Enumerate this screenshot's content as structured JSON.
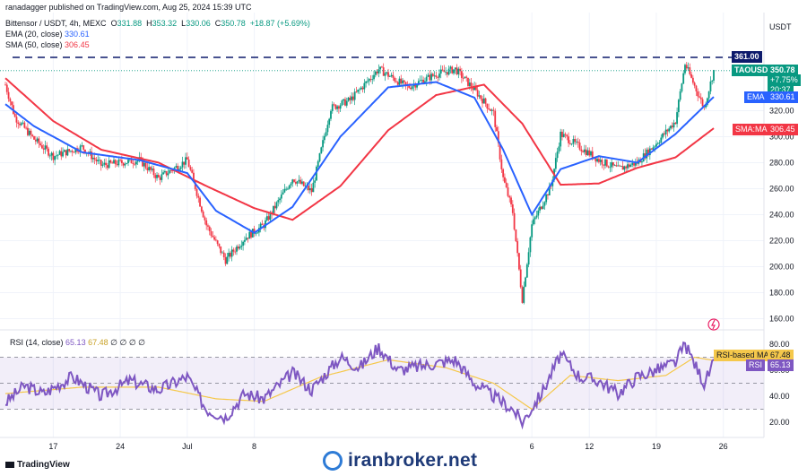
{
  "header": {
    "published_by": "ranadagger published on TradingView.com, Aug 25, 2024 15:39 UTC"
  },
  "symbol_line": {
    "name": "Bittensor / USDT, 4h, MEXC",
    "o_label": "O",
    "o": "331.88",
    "h_label": "H",
    "h": "353.32",
    "l_label": "L",
    "l": "330.06",
    "c_label": "C",
    "c": "350.78",
    "change": "+18.87 (+5.69%)"
  },
  "indicators": {
    "ema": {
      "label": "EMA (20, close)",
      "value": "330.61"
    },
    "sma": {
      "label": "SMA (50, close)",
      "value": "306.45"
    },
    "rsi": {
      "label": "RSI (14, close)",
      "value": "65.13",
      "ma_value": "67.48",
      "extras": "∅ ∅ ∅ ∅"
    }
  },
  "price_axis": {
    "currency": "USDT",
    "ticks": [
      "160.00",
      "180.00",
      "200.00",
      "220.00",
      "240.00",
      "260.00",
      "280.00",
      "300.00",
      "320.00"
    ]
  },
  "rsi_axis": {
    "ticks": [
      "20.00",
      "40.00",
      "60.00",
      "80.00"
    ]
  },
  "time_axis": {
    "ticks": [
      "17",
      "24",
      "Jul",
      "8",
      "6",
      "12",
      "19",
      "26"
    ]
  },
  "labels": {
    "resistance": "361.00",
    "ticker": "TAOUSDT",
    "last_price": "350.78",
    "last_change": "+7.75%",
    "countdown": "20:37",
    "ema_tag": "EMA",
    "ema_value": "330.61",
    "sma_tag": "SMA:MA",
    "sma_value": "306.45",
    "rsi_ma_tag": "RSI-based MA",
    "rsi_ma_value": "67.48",
    "rsi_tag": "RSI",
    "rsi_value": "65.13"
  },
  "footer": {
    "logo": "TradingView",
    "watermark": "iranbroker.net"
  },
  "colors": {
    "up": "#089981",
    "down": "#f23645",
    "ema": "#2962ff",
    "sma": "#f23645",
    "rsi": "#7e57c2",
    "rsi_ma": "#f5c84b",
    "resistance": "#0d1a6b"
  },
  "chart_data": {
    "type": "candlestick",
    "title": "Bittensor / USDT, 4h, MEXC",
    "ylim": [
      155,
      370
    ],
    "resistance_level": 361.0,
    "price_anchors": [
      {
        "time": "Jun 12",
        "value": 340
      },
      {
        "time": "Jun 13",
        "value": 315
      },
      {
        "time": "Jun 15",
        "value": 298
      },
      {
        "time": "Jun 17",
        "value": 285
      },
      {
        "time": "Jun 20",
        "value": 292
      },
      {
        "time": "Jun 22",
        "value": 278
      },
      {
        "time": "Jun 26",
        "value": 282
      },
      {
        "time": "Jun 28",
        "value": 268
      },
      {
        "time": "Jul 1",
        "value": 282
      },
      {
        "time": "Jul 3",
        "value": 232
      },
      {
        "time": "Jul 5",
        "value": 205
      },
      {
        "time": "Jul 7",
        "value": 222
      },
      {
        "time": "Jul 9",
        "value": 232
      },
      {
        "time": "Jul 12",
        "value": 268
      },
      {
        "time": "Jul 14",
        "value": 258
      },
      {
        "time": "Jul 16",
        "value": 322
      },
      {
        "time": "Jul 18",
        "value": 328
      },
      {
        "time": "Jul 21",
        "value": 352
      },
      {
        "time": "Jul 24",
        "value": 338
      },
      {
        "time": "Jul 27",
        "value": 348
      },
      {
        "time": "Jul 29",
        "value": 352
      },
      {
        "time": "Jul 31",
        "value": 336
      },
      {
        "time": "Aug 2",
        "value": 318
      },
      {
        "time": "Aug 3",
        "value": 268
      },
      {
        "time": "Aug 4",
        "value": 242
      },
      {
        "time": "Aug 5",
        "value": 175
      },
      {
        "time": "Aug 6",
        "value": 232
      },
      {
        "time": "Aug 8",
        "value": 262
      },
      {
        "time": "Aug 9",
        "value": 302
      },
      {
        "time": "Aug 11",
        "value": 292
      },
      {
        "time": "Aug 13",
        "value": 282
      },
      {
        "time": "Aug 15",
        "value": 275
      },
      {
        "time": "Aug 17",
        "value": 280
      },
      {
        "time": "Aug 19",
        "value": 295
      },
      {
        "time": "Aug 21",
        "value": 312
      },
      {
        "time": "Aug 22",
        "value": 356
      },
      {
        "time": "Aug 24",
        "value": 322
      },
      {
        "time": "Aug 25",
        "value": 350.78
      }
    ],
    "ema_anchors": [
      {
        "time": "Jun 12",
        "value": 325
      },
      {
        "time": "Jun 15",
        "value": 308
      },
      {
        "time": "Jun 20",
        "value": 288
      },
      {
        "time": "Jun 26",
        "value": 282
      },
      {
        "time": "Jul 1",
        "value": 272
      },
      {
        "time": "Jul 4",
        "value": 243
      },
      {
        "time": "Jul 8",
        "value": 226
      },
      {
        "time": "Jul 12",
        "value": 246
      },
      {
        "time": "Jul 17",
        "value": 300
      },
      {
        "time": "Jul 22",
        "value": 338
      },
      {
        "time": "Jul 27",
        "value": 342
      },
      {
        "time": "Jul 31",
        "value": 330
      },
      {
        "time": "Aug 3",
        "value": 290
      },
      {
        "time": "Aug 6",
        "value": 240
      },
      {
        "time": "Aug 9",
        "value": 275
      },
      {
        "time": "Aug 13",
        "value": 285
      },
      {
        "time": "Aug 17",
        "value": 280
      },
      {
        "time": "Aug 21",
        "value": 302
      },
      {
        "time": "Aug 25",
        "value": 330.61
      }
    ],
    "sma_anchors": [
      {
        "time": "Jun 12",
        "value": 345
      },
      {
        "time": "Jun 17",
        "value": 312
      },
      {
        "time": "Jun 22",
        "value": 290
      },
      {
        "time": "Jun 28",
        "value": 280
      },
      {
        "time": "Jul 3",
        "value": 262
      },
      {
        "time": "Jul 8",
        "value": 245
      },
      {
        "time": "Jul 12",
        "value": 236
      },
      {
        "time": "Jul 17",
        "value": 262
      },
      {
        "time": "Jul 22",
        "value": 305
      },
      {
        "time": "Jul 27",
        "value": 332
      },
      {
        "time": "Aug 1",
        "value": 340
      },
      {
        "time": "Aug 5",
        "value": 310
      },
      {
        "time": "Aug 9",
        "value": 263
      },
      {
        "time": "Aug 13",
        "value": 264
      },
      {
        "time": "Aug 17",
        "value": 276
      },
      {
        "time": "Aug 21",
        "value": 284
      },
      {
        "time": "Aug 25",
        "value": 306.45
      }
    ],
    "rsi": {
      "ylim": [
        15,
        85
      ],
      "band": [
        30,
        70
      ],
      "middle": 50,
      "anchors": [
        {
          "time": "Jun 12",
          "value": 35
        },
        {
          "time": "Jun 14",
          "value": 48
        },
        {
          "time": "Jun 16",
          "value": 42
        },
        {
          "time": "Jun 19",
          "value": 55
        },
        {
          "time": "Jun 22",
          "value": 40
        },
        {
          "time": "Jun 25",
          "value": 52
        },
        {
          "time": "Jun 28",
          "value": 45
        },
        {
          "time": "Jul 1",
          "value": 55
        },
        {
          "time": "Jul 3",
          "value": 30
        },
        {
          "time": "Jul 5",
          "value": 24
        },
        {
          "time": "Jul 7",
          "value": 42
        },
        {
          "time": "Jul 9",
          "value": 38
        },
        {
          "time": "Jul 12",
          "value": 58
        },
        {
          "time": "Jul 14",
          "value": 45
        },
        {
          "time": "Jul 17",
          "value": 70
        },
        {
          "time": "Jul 19",
          "value": 62
        },
        {
          "time": "Jul 21",
          "value": 78
        },
        {
          "time": "Jul 23",
          "value": 60
        },
        {
          "time": "Jul 26",
          "value": 64
        },
        {
          "time": "Jul 29",
          "value": 68
        },
        {
          "time": "Jul 31",
          "value": 50
        },
        {
          "time": "Aug 2",
          "value": 40
        },
        {
          "time": "Aug 4",
          "value": 30
        },
        {
          "time": "Aug 5",
          "value": 20
        },
        {
          "time": "Aug 7",
          "value": 42
        },
        {
          "time": "Aug 9",
          "value": 72
        },
        {
          "time": "Aug 11",
          "value": 55
        },
        {
          "time": "Aug 13",
          "value": 52
        },
        {
          "time": "Aug 15",
          "value": 42
        },
        {
          "time": "Aug 17",
          "value": 55
        },
        {
          "time": "Aug 19",
          "value": 60
        },
        {
          "time": "Aug 21",
          "value": 66
        },
        {
          "time": "Aug 22",
          "value": 80
        },
        {
          "time": "Aug 24",
          "value": 50
        },
        {
          "time": "Aug 25",
          "value": 65.13
        }
      ],
      "ma_anchors": [
        {
          "time": "Jun 12",
          "value": 42
        },
        {
          "time": "Jun 20",
          "value": 47
        },
        {
          "time": "Jun 28",
          "value": 47
        },
        {
          "time": "Jul 4",
          "value": 38
        },
        {
          "time": "Jul 9",
          "value": 36
        },
        {
          "time": "Jul 15",
          "value": 55
        },
        {
          "time": "Jul 22",
          "value": 68
        },
        {
          "time": "Jul 28",
          "value": 62
        },
        {
          "time": "Aug 2",
          "value": 50
        },
        {
          "time": "Aug 6",
          "value": 30
        },
        {
          "time": "Aug 10",
          "value": 56
        },
        {
          "time": "Aug 15",
          "value": 52
        },
        {
          "time": "Aug 20",
          "value": 56
        },
        {
          "time": "Aug 23",
          "value": 70
        },
        {
          "time": "Aug 25",
          "value": 67.48
        }
      ]
    }
  }
}
